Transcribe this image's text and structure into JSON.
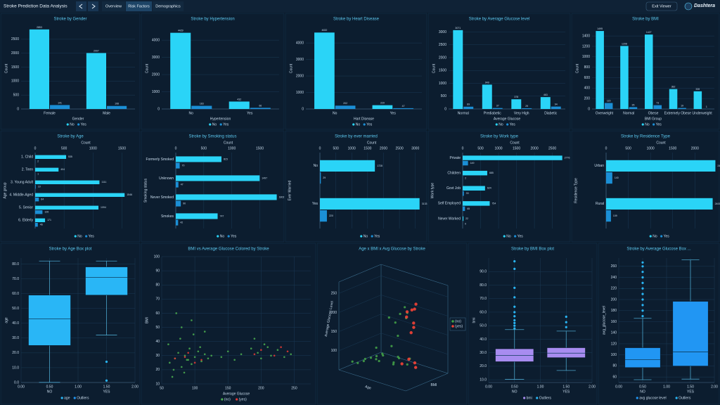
{
  "header": {
    "title": "Stroke Prediction Data Analysis",
    "tabs": [
      "Overview",
      "Risk Factors",
      "Demographics"
    ],
    "exit": "Exit Viewer",
    "logo": "Dashtera"
  },
  "chart_data": [
    {
      "type": "bar",
      "title": "Stroke by Gender",
      "xlabel": "Gender",
      "ylabel": "Count",
      "categories": [
        "Female",
        "Male"
      ],
      "series": [
        {
          "name": "No",
          "color": "#2ad4f7",
          "values": [
            2853,
            2007
          ]
        },
        {
          "name": "Yes",
          "color": "#1b8fd6",
          "values": [
            141,
            108
          ]
        }
      ],
      "ylim": [
        0,
        2900
      ],
      "yticks": [
        0,
        500,
        1000,
        1500,
        2000,
        2500
      ],
      "grid": true
    },
    {
      "type": "bar",
      "title": "Stroke by Hypertension",
      "xlabel": "Hypertension",
      "ylabel": "Count",
      "categories": [
        "No",
        "Yes"
      ],
      "series": [
        {
          "name": "No",
          "color": "#2ad4f7",
          "values": [
            4429,
            432
          ]
        },
        {
          "name": "Yes",
          "color": "#1b8fd6",
          "values": [
            183,
            66
          ]
        }
      ],
      "ylim": [
        0,
        4700
      ],
      "yticks": [
        0,
        1000,
        2000,
        3000,
        4000
      ],
      "grid": true
    },
    {
      "type": "bar",
      "title": "Stroke by Heart Disease",
      "xlabel": "Hart Disease",
      "ylabel": "Count",
      "categories": [
        "No",
        "Yes"
      ],
      "series": [
        {
          "name": "No",
          "color": "#2ad4f7",
          "values": [
            4632,
            229
          ]
        },
        {
          "name": "Yes",
          "color": "#1b8fd6",
          "values": [
            202,
            47
          ]
        }
      ],
      "ylim": [
        0,
        4900
      ],
      "yticks": [
        0,
        1000,
        2000,
        3000,
        4000
      ],
      "grid": true
    },
    {
      "type": "bar",
      "title": "Stroke by Average Glucose level",
      "xlabel": "Average Glucose",
      "ylabel": "Count",
      "categories": [
        "Normal",
        "Prediabetic",
        "Very High",
        "Diabetic"
      ],
      "series": [
        {
          "name": "No",
          "color": "#2ad4f7",
          "values": [
            3071,
            949,
            378,
            463
          ]
        },
        {
          "name": "Yes",
          "color": "#1b8fd6",
          "values": [
            89,
            37,
            29,
            94
          ]
        }
      ],
      "ylim": [
        0,
        3150
      ],
      "yticks": [
        0,
        500,
        1000,
        1500,
        2000,
        2500,
        3000
      ],
      "grid": true
    },
    {
      "type": "bar",
      "title": "Stroke by BMI",
      "xlabel": "BMI Group",
      "ylabel": "Count",
      "categories": [
        "Overweight",
        "Normal",
        "Obese",
        "Extremely Obese",
        "Underweight"
      ],
      "series": [
        {
          "name": "No",
          "color": "#2ad4f7",
          "values": [
            1495,
            1208,
            1427,
            382,
            339
          ]
        },
        {
          "name": "Yes",
          "color": "#1b8fd6",
          "values": [
            115,
            35,
            73,
            19,
            1
          ]
        }
      ],
      "ylim": [
        0,
        1550
      ],
      "yticks": [
        0,
        200,
        400,
        600,
        800,
        1000,
        1200,
        1400
      ],
      "grid": true
    },
    {
      "type": "barh",
      "title": "Stroke by Age",
      "xlabel": "Count",
      "ylabel": "Age group",
      "categories": [
        "1. Child",
        "2. Teen",
        "3. Young Adult",
        "4. Middle-Aged",
        "5. Senior",
        "6. Elderly"
      ],
      "series": [
        {
          "name": "No",
          "color": "#2ad4f7",
          "values": [
            535,
            404,
            1111,
            1546,
            1094,
            171
          ]
        },
        {
          "name": "Yes",
          "color": "#1b8fd6",
          "values": [
            2,
            1,
            10,
            64,
            126,
            46
          ]
        }
      ],
      "xlim": [
        0,
        1750
      ],
      "xticks": [
        0,
        500,
        1000,
        1500
      ],
      "grid": true
    },
    {
      "type": "barh",
      "title": "Stroke by Smoking status",
      "xlabel": "Count",
      "ylabel": "Smoking status",
      "categories": [
        "Formerly Smoked",
        "Unknown",
        "Never Smoked",
        "Smokes"
      ],
      "series": [
        {
          "name": "No",
          "color": "#2ad4f7",
          "values": [
            815,
            1497,
            1802,
            747
          ]
        },
        {
          "name": "Yes",
          "color": "#1b8fd6",
          "values": [
            70,
            47,
            90,
            42
          ]
        }
      ],
      "xlim": [
        0,
        1870
      ],
      "xticks": [
        0,
        500,
        1000,
        1500
      ],
      "grid": true
    },
    {
      "type": "barh",
      "title": "Stroke by ever married",
      "xlabel": "Count",
      "ylabel": "Ever Married",
      "categories": [
        "No",
        "Yes"
      ],
      "series": [
        {
          "name": "No",
          "color": "#2ad4f7",
          "values": [
            1728,
            3133
          ]
        },
        {
          "name": "Yes",
          "color": "#1b8fd6",
          "values": [
            29,
            220
          ]
        }
      ],
      "xlim": [
        0,
        3250
      ],
      "xticks": [
        0,
        500,
        1000,
        1500,
        2000,
        2500,
        3000
      ],
      "grid": true
    },
    {
      "type": "barh",
      "title": "Stroke by Work type",
      "xlabel": "Count",
      "ylabel": "Work type",
      "categories": [
        "Private",
        "Children",
        "Govt Job",
        "Self Employed",
        "Never Worked"
      ],
      "series": [
        {
          "name": "No",
          "color": "#2ad4f7",
          "values": [
            2776,
            685,
            624,
            754,
            22
          ]
        },
        {
          "name": "Yes",
          "color": "#1b8fd6",
          "values": [
            149,
            2,
            33,
            65,
            0
          ]
        }
      ],
      "xlim": [
        0,
        2900
      ],
      "xticks": [
        0,
        500,
        1000,
        1500,
        2000,
        2500
      ],
      "grid": true
    },
    {
      "type": "barh",
      "title": "Stroke by Residence Type",
      "xlabel": "Count",
      "ylabel": "Residence Type",
      "categories": [
        "Urban",
        "Rural"
      ],
      "series": [
        {
          "name": "No",
          "color": "#2ad4f7",
          "values": [
            2461,
            2400
          ]
        },
        {
          "name": "Yes",
          "color": "#1b8fd6",
          "values": [
            140,
            109
          ]
        }
      ],
      "xlim": [
        0,
        2470
      ],
      "xticks": [
        0,
        500,
        1000,
        1500,
        2000
      ],
      "grid": true
    },
    {
      "type": "box",
      "title": "Stroke by Age Box plot",
      "ylabel": "age",
      "categories": [
        "NO",
        "YES"
      ],
      "x": [
        0.5,
        1.5
      ],
      "color": "#29b6f6",
      "boxes": [
        {
          "low": 0.08,
          "q1": 25,
          "median": 43,
          "q3": 59,
          "high": 82,
          "outliers": []
        },
        {
          "low": 32,
          "q1": 59,
          "median": 71,
          "q3": 78,
          "high": 82,
          "outliers": [
            14,
            1.32
          ]
        }
      ],
      "legend": [
        {
          "name": "age",
          "color": "#29b6f6"
        },
        {
          "name": "Outliers",
          "color": "#2196f3"
        }
      ],
      "xlim": [
        0,
        2
      ],
      "xticks": [
        {
          "value": 0,
          "label": "0.00"
        },
        {
          "value": 0.5,
          "label": "0.50"
        },
        {
          "value": 1,
          "label": "1.00"
        },
        {
          "value": 1.5,
          "label": "1.50"
        },
        {
          "value": 2,
          "label": "2.00"
        }
      ],
      "ylim": [
        0,
        84
      ],
      "yticks": [
        {
          "value": 0,
          "label": "0.0"
        },
        {
          "value": 10,
          "label": "10.0"
        },
        {
          "value": 20,
          "label": "20.0"
        },
        {
          "value": 30,
          "label": "30.0"
        },
        {
          "value": 40,
          "label": "40.0"
        },
        {
          "value": 50,
          "label": "50.0"
        },
        {
          "value": 60,
          "label": "60.0"
        },
        {
          "value": 70,
          "label": "70.0"
        },
        {
          "value": 80,
          "label": "80.0"
        }
      ],
      "grid": true
    },
    {
      "type": "scatter",
      "title": "BMI vs Average Glucose Colored by Stroke",
      "xlabel": "Average Glucose",
      "ylabel": "BMI",
      "series": [
        {
          "name": "(no)",
          "color": "#4caf50",
          "x": [
            62,
            70,
            75,
            80,
            85,
            88,
            92,
            95,
            100,
            105,
            110,
            115,
            120,
            60,
            68,
            78,
            84,
            90,
            98,
            108,
            125,
            140,
            150,
            160,
            170,
            185,
            195,
            205,
            215,
            225,
            235,
            245,
            190,
            200,
            210,
            80,
            95,
            72,
            66,
            115
          ],
          "y": [
            25,
            28,
            32,
            22,
            30,
            27,
            35,
            24,
            29,
            33,
            26,
            31,
            28,
            38,
            20,
            42,
            18,
            27,
            45,
            36,
            30,
            29,
            33,
            27,
            31,
            35,
            32,
            38,
            30,
            34,
            29,
            31,
            42,
            28,
            36,
            50,
            55,
            60,
            15,
            47
          ]
        },
        {
          "name": "(yes)",
          "color": "#e53935",
          "x": [
            70,
            90,
            110,
            200,
            220,
            230,
            85,
            190,
            240,
            100
          ],
          "y": [
            28,
            32,
            27,
            34,
            30,
            36,
            29,
            31,
            33,
            25
          ]
        }
      ],
      "xlim": [
        50,
        275
      ],
      "xticks": [
        50,
        100,
        150,
        200,
        250
      ],
      "ylim": [
        10,
        100
      ],
      "yticks": [
        10,
        20,
        30,
        40,
        50,
        60,
        70,
        80,
        90,
        100
      ],
      "grid": true
    },
    {
      "type": "scatter3d",
      "title": "Age x BMI x Avg Glucose by Stroke",
      "xlabel": "Age",
      "ylabel": "BMI",
      "zlabel": "Average Glucose Level",
      "series": [
        {
          "name": "(no)",
          "color": "#43a047",
          "x": [
            20,
            30,
            40,
            50,
            60,
            70,
            25,
            35,
            45,
            55,
            65,
            15,
            50,
            60,
            40,
            30,
            70,
            55,
            45,
            35,
            20,
            65,
            75,
            10,
            50
          ],
          "y": [
            25,
            30,
            28,
            32,
            27,
            29,
            35,
            24,
            31,
            26,
            33,
            20,
            38,
            30,
            27,
            22,
            29,
            34,
            40,
            28,
            23,
            31,
            27,
            18,
            29
          ],
          "z": [
            80,
            90,
            100,
            85,
            110,
            95,
            75,
            120,
            200,
            88,
            210,
            70,
            150,
            220,
            105,
            92,
            230,
            98,
            180,
            82,
            76,
            240,
            115,
            72,
            130
          ]
        },
        {
          "name": "(yes)",
          "color": "#f44336",
          "x": [
            70,
            75,
            80,
            78,
            72,
            68,
            82,
            76,
            79,
            74,
            65,
            81
          ],
          "y": [
            28,
            30,
            27,
            32,
            29,
            31,
            26,
            33,
            28,
            30,
            27,
            29
          ],
          "z": [
            220,
            240,
            200,
            90,
            110,
            230,
            250,
            100,
            210,
            180,
            95,
            260
          ]
        }
      ],
      "xlim": [
        0,
        85
      ],
      "ylim": [
        10,
        70
      ],
      "zlim": [
        50,
        280
      ],
      "zticks": [
        100,
        150,
        200,
        250
      ]
    },
    {
      "type": "box",
      "title": "Stroke by BMI Box plot",
      "ylabel": "bmi",
      "categories": [
        "NO",
        "YES"
      ],
      "x": [
        0.5,
        1.5
      ],
      "color": "#a88cf0",
      "boxes": [
        {
          "low": 10.3,
          "q1": 23.4,
          "median": 28,
          "q3": 32.9,
          "high": 47.1,
          "outliers": [
            48,
            50,
            52,
            54,
            57,
            60,
            64,
            71,
            78,
            92,
            97.6
          ]
        },
        {
          "low": 16.9,
          "q1": 26.4,
          "median": 29.7,
          "q3": 33.7,
          "high": 46,
          "outliers": [
            48.9,
            52.6,
            56.6
          ]
        }
      ],
      "legend": [
        {
          "name": "bmi",
          "color": "#a88cf0"
        },
        {
          "name": "Outliers",
          "color": "#29b6f6"
        }
      ],
      "xlim": [
        0,
        2
      ],
      "xticks": [
        {
          "value": 0,
          "label": "0.00"
        },
        {
          "value": 0.5,
          "label": "0.50"
        },
        {
          "value": 1,
          "label": "1.00"
        },
        {
          "value": 1.5,
          "label": "1.50"
        },
        {
          "value": 2,
          "label": "2.00"
        }
      ],
      "ylim": [
        8,
        100
      ],
      "yticks": [
        {
          "value": 10,
          "label": "10.0"
        },
        {
          "value": 20,
          "label": "20.0"
        },
        {
          "value": 30,
          "label": "30.0"
        },
        {
          "value": 40,
          "label": "40.0"
        },
        {
          "value": 50,
          "label": "50.0"
        },
        {
          "value": 60,
          "label": "60.0"
        },
        {
          "value": 70,
          "label": "70.0"
        },
        {
          "value": 80,
          "label": "80.0"
        },
        {
          "value": 90,
          "label": "90.0"
        }
      ],
      "grid": true
    },
    {
      "type": "box",
      "title": "Stroke by Average Glucose Box ...",
      "ylabel": "avg_glucose_level",
      "categories": [
        "NO",
        "YES"
      ],
      "x": [
        0.5,
        1.5
      ],
      "color": "#2196f3",
      "boxes": [
        {
          "low": 55.1,
          "q1": 77.1,
          "median": 91.5,
          "q3": 112.8,
          "high": 166,
          "outliers": [
            170,
            180,
            190,
            200,
            210,
            220,
            230,
            240,
            250,
            260,
            267
          ]
        },
        {
          "low": 56.1,
          "q1": 79.8,
          "median": 105.2,
          "q3": 196.7,
          "high": 271.7,
          "outliers": []
        }
      ],
      "legend": [
        {
          "name": "avg glucose level",
          "color": "#2196f3"
        },
        {
          "name": "Outliers",
          "color": "#29b6f6"
        }
      ],
      "xlim": [
        0,
        2
      ],
      "xticks": [
        {
          "value": 0,
          "label": "0.00"
        },
        {
          "value": 0.5,
          "label": "0.50"
        },
        {
          "value": 1,
          "label": "1.00"
        },
        {
          "value": 1.5,
          "label": "1.50"
        },
        {
          "value": 2,
          "label": "2.00"
        }
      ],
      "ylim": [
        50,
        275
      ],
      "yticks": [
        60,
        80,
        100,
        120,
        140,
        160,
        180,
        200,
        220,
        240,
        260
      ],
      "grid": true
    }
  ]
}
